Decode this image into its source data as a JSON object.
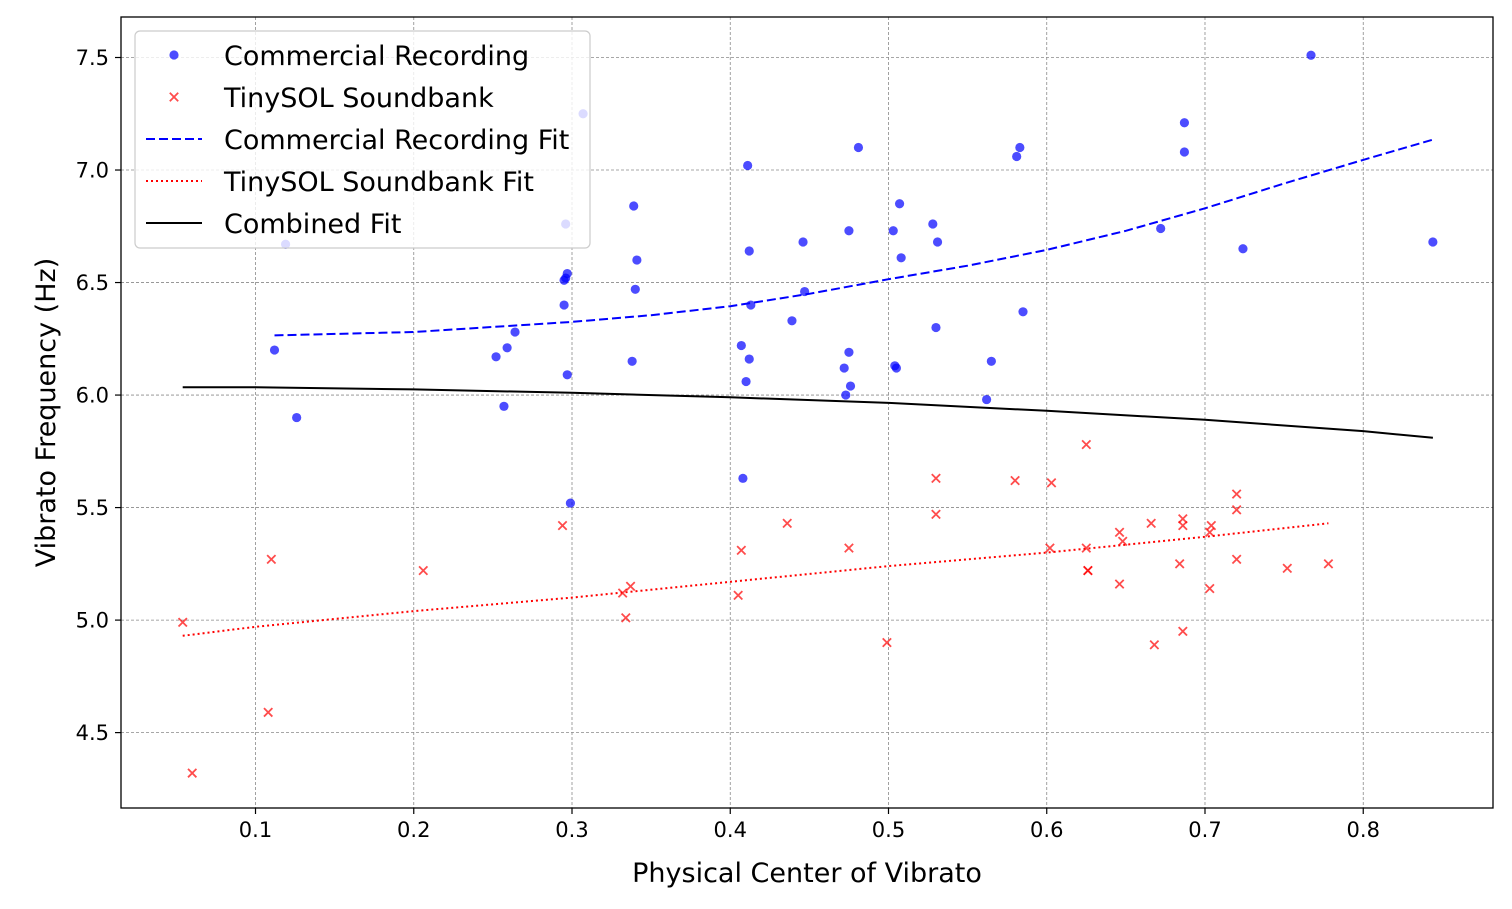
{
  "chart_data": {
    "type": "scatter",
    "xlabel": "Physical Center of Vibrato",
    "ylabel": "Vibrato Frequency (Hz)",
    "xlim": [
      0.015,
      0.882
    ],
    "ylim": [
      4.165,
      7.68
    ],
    "x_ticks": [
      0.1,
      0.2,
      0.3,
      0.4,
      0.5,
      0.6,
      0.7,
      0.8
    ],
    "x_tick_labels": [
      "0.1",
      "0.2",
      "0.3",
      "0.4",
      "0.5",
      "0.6",
      "0.7",
      "0.8"
    ],
    "y_ticks": [
      4.5,
      5.0,
      5.5,
      6.0,
      6.5,
      7.0,
      7.5
    ],
    "y_tick_labels": [
      "4.5",
      "5.0",
      "5.5",
      "6.0",
      "6.5",
      "7.0",
      "7.5"
    ],
    "grid": true,
    "legend_position": "top-left",
    "series": [
      {
        "name": "Commercial Recording",
        "kind": "scatter",
        "marker": "circle",
        "color": "#0000ff",
        "points": [
          [
            0.112,
            6.2
          ],
          [
            0.119,
            6.67
          ],
          [
            0.126,
            5.9
          ],
          [
            0.252,
            6.17
          ],
          [
            0.257,
            5.95
          ],
          [
            0.259,
            6.21
          ],
          [
            0.264,
            6.28
          ],
          [
            0.295,
            6.51
          ],
          [
            0.295,
            6.4
          ],
          [
            0.296,
            6.52
          ],
          [
            0.296,
            6.76
          ],
          [
            0.297,
            6.54
          ],
          [
            0.297,
            6.09
          ],
          [
            0.299,
            5.52
          ],
          [
            0.307,
            7.25
          ],
          [
            0.338,
            6.15
          ],
          [
            0.339,
            6.84
          ],
          [
            0.34,
            6.47
          ],
          [
            0.341,
            6.6
          ],
          [
            0.407,
            6.22
          ],
          [
            0.408,
            5.63
          ],
          [
            0.41,
            6.06
          ],
          [
            0.411,
            7.02
          ],
          [
            0.412,
            6.16
          ],
          [
            0.412,
            6.64
          ],
          [
            0.413,
            6.4
          ],
          [
            0.439,
            6.33
          ],
          [
            0.446,
            6.68
          ],
          [
            0.447,
            6.46
          ],
          [
            0.472,
            6.12
          ],
          [
            0.473,
            6.0
          ],
          [
            0.475,
            6.73
          ],
          [
            0.475,
            6.19
          ],
          [
            0.476,
            6.04
          ],
          [
            0.481,
            7.1
          ],
          [
            0.503,
            6.73
          ],
          [
            0.504,
            6.13
          ],
          [
            0.505,
            6.12
          ],
          [
            0.507,
            6.85
          ],
          [
            0.508,
            6.61
          ],
          [
            0.528,
            6.76
          ],
          [
            0.53,
            6.3
          ],
          [
            0.531,
            6.68
          ],
          [
            0.562,
            5.98
          ],
          [
            0.565,
            6.15
          ],
          [
            0.581,
            7.06
          ],
          [
            0.583,
            7.1
          ],
          [
            0.585,
            6.37
          ],
          [
            0.672,
            6.74
          ],
          [
            0.687,
            7.21
          ],
          [
            0.687,
            7.08
          ],
          [
            0.724,
            6.65
          ],
          [
            0.767,
            7.51
          ],
          [
            0.844,
            6.68
          ]
        ]
      },
      {
        "name": "TinySOL Soundbank",
        "kind": "scatter",
        "marker": "x",
        "color": "#ff0000",
        "points": [
          [
            0.054,
            4.99
          ],
          [
            0.06,
            4.32
          ],
          [
            0.108,
            4.59
          ],
          [
            0.11,
            5.27
          ],
          [
            0.206,
            5.22
          ],
          [
            0.294,
            5.42
          ],
          [
            0.332,
            5.12
          ],
          [
            0.334,
            5.01
          ],
          [
            0.337,
            5.15
          ],
          [
            0.405,
            5.11
          ],
          [
            0.407,
            5.31
          ],
          [
            0.436,
            5.43
          ],
          [
            0.475,
            5.32
          ],
          [
            0.499,
            4.9
          ],
          [
            0.53,
            5.47
          ],
          [
            0.53,
            5.63
          ],
          [
            0.58,
            5.62
          ],
          [
            0.602,
            5.32
          ],
          [
            0.603,
            5.61
          ],
          [
            0.625,
            5.78
          ],
          [
            0.625,
            5.32
          ],
          [
            0.626,
            5.22
          ],
          [
            0.626,
            5.22
          ],
          [
            0.646,
            5.16
          ],
          [
            0.646,
            5.39
          ],
          [
            0.648,
            5.35
          ],
          [
            0.666,
            5.43
          ],
          [
            0.668,
            4.89
          ],
          [
            0.684,
            5.25
          ],
          [
            0.686,
            5.42
          ],
          [
            0.686,
            5.45
          ],
          [
            0.686,
            4.95
          ],
          [
            0.703,
            5.14
          ],
          [
            0.703,
            5.39
          ],
          [
            0.704,
            5.42
          ],
          [
            0.72,
            5.27
          ],
          [
            0.72,
            5.49
          ],
          [
            0.72,
            5.56
          ],
          [
            0.752,
            5.23
          ],
          [
            0.778,
            5.25
          ]
        ]
      },
      {
        "name": "Commercial Recording Fit",
        "kind": "line",
        "style": "dashed",
        "color": "#0000ff",
        "points": [
          [
            0.112,
            6.265
          ],
          [
            0.2,
            6.28
          ],
          [
            0.3,
            6.325
          ],
          [
            0.35,
            6.355
          ],
          [
            0.4,
            6.395
          ],
          [
            0.45,
            6.45
          ],
          [
            0.5,
            6.515
          ],
          [
            0.55,
            6.575
          ],
          [
            0.6,
            6.645
          ],
          [
            0.65,
            6.73
          ],
          [
            0.7,
            6.83
          ],
          [
            0.75,
            6.94
          ],
          [
            0.8,
            7.045
          ],
          [
            0.844,
            7.135
          ]
        ]
      },
      {
        "name": "TinySOL Soundbank Fit",
        "kind": "line",
        "style": "dotted",
        "color": "#ff0000",
        "points": [
          [
            0.054,
            4.93
          ],
          [
            0.1,
            4.97
          ],
          [
            0.2,
            5.04
          ],
          [
            0.3,
            5.1
          ],
          [
            0.4,
            5.17
          ],
          [
            0.5,
            5.24
          ],
          [
            0.6,
            5.3
          ],
          [
            0.7,
            5.37
          ],
          [
            0.778,
            5.43
          ]
        ]
      },
      {
        "name": "Combined Fit",
        "kind": "line",
        "style": "solid",
        "color": "#000000",
        "points": [
          [
            0.054,
            6.035
          ],
          [
            0.1,
            6.035
          ],
          [
            0.2,
            6.025
          ],
          [
            0.3,
            6.01
          ],
          [
            0.4,
            5.99
          ],
          [
            0.5,
            5.965
          ],
          [
            0.6,
            5.93
          ],
          [
            0.7,
            5.89
          ],
          [
            0.8,
            5.84
          ],
          [
            0.844,
            5.81
          ]
        ]
      }
    ]
  }
}
